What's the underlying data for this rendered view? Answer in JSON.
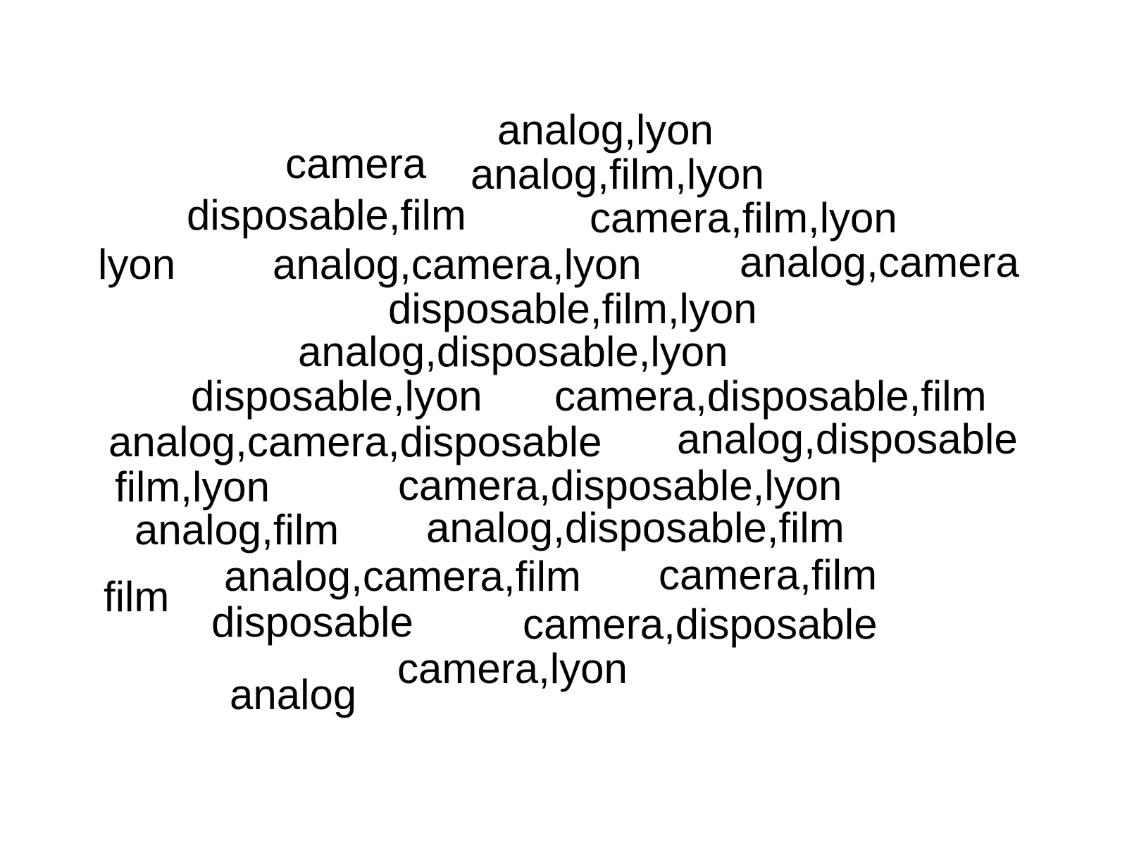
{
  "cloud": {
    "text_color": "#000000",
    "background_color": "#ffffff",
    "terms": [
      "analog,lyon",
      "camera",
      "analog,film,lyon",
      "disposable,film",
      "camera,film,lyon",
      "lyon",
      "analog,camera,lyon",
      "analog,camera",
      "disposable,film,lyon",
      "analog,disposable,lyon",
      "disposable,lyon",
      "camera,disposable,film",
      "analog,camera,disposable",
      "analog,disposable",
      "film,lyon",
      "camera,disposable,lyon",
      "analog,film",
      "analog,disposable,film",
      "analog,camera,film",
      "camera,film",
      "film",
      "disposable",
      "camera,disposable",
      "camera,lyon",
      "analog"
    ]
  }
}
